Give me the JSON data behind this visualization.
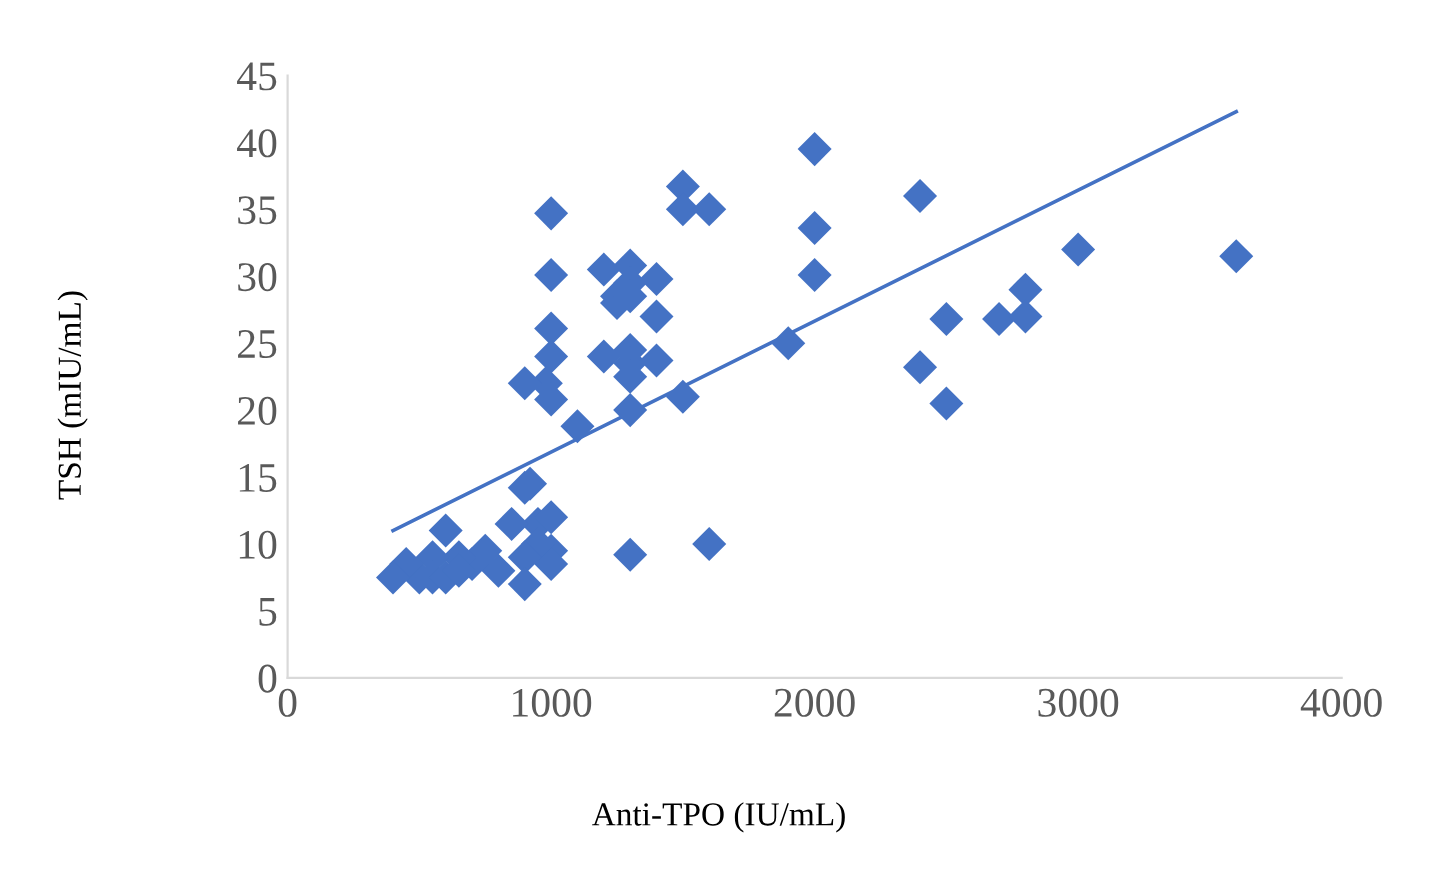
{
  "chart_data": {
    "type": "scatter",
    "xlabel": "Anti-TPO (IU/mL)",
    "ylabel": "TSH (mIU/mL)",
    "xlim": [
      0,
      4000
    ],
    "xticks": [
      0,
      1000,
      2000,
      3000,
      4000
    ],
    "ylim": [
      0,
      45
    ],
    "yticks": [
      0,
      5,
      10,
      15,
      20,
      25,
      30,
      35,
      40,
      45
    ],
    "grid": false,
    "legend": false,
    "series": [
      {
        "marker": "diamond",
        "color": "#4472c4",
        "x": [
          1000,
          1000,
          1000,
          1000,
          980,
          1000,
          900,
          920,
          900,
          950,
          1000,
          1000,
          1000,
          950,
          900,
          900,
          850,
          800,
          750,
          700,
          650,
          600,
          550,
          500,
          450,
          400,
          550,
          600,
          650,
          1100,
          1200,
          1200,
          1250,
          1250,
          1300,
          1300,
          1300,
          1300,
          1300,
          1300,
          1300,
          1300,
          1400,
          1400,
          1400,
          1500,
          1500,
          1500,
          1600,
          1600,
          1900,
          2000,
          2000,
          2000,
          2400,
          2400,
          2500,
          2500,
          2700,
          2800,
          2800,
          3000,
          3600
        ],
        "values": [
          34.7,
          30.1,
          26.1,
          24,
          22,
          20.8,
          22,
          14.5,
          14.2,
          11.5,
          12,
          9.5,
          8.5,
          10,
          9,
          7,
          11.5,
          8,
          9.5,
          8.5,
          9,
          11,
          9,
          7.5,
          8.5,
          7.5,
          7.5,
          7.5,
          8,
          18.8,
          30.5,
          24,
          28.5,
          28,
          30.8,
          29.5,
          28.5,
          24.5,
          23.5,
          22.5,
          20,
          9.2,
          29.8,
          27,
          23.7,
          36.7,
          35,
          21,
          35,
          10,
          25,
          39.5,
          33.6,
          30.1,
          36,
          23.2,
          26.8,
          20.5,
          26.8,
          29,
          27,
          32,
          31.5
        ]
      },
      {
        "type": "line",
        "color": "#4472c4",
        "line_style": "solid",
        "x": [
          400,
          3600
        ],
        "values": [
          11,
          42.3
        ]
      }
    ]
  }
}
